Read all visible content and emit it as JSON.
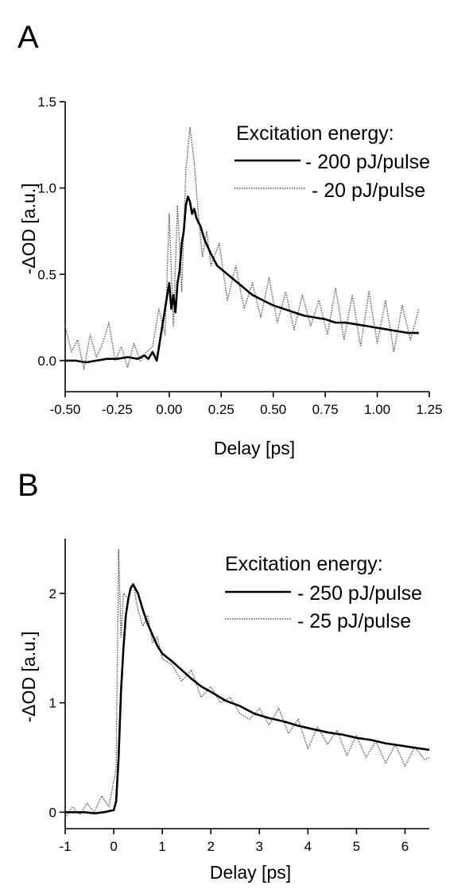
{
  "panels": [
    {
      "letter": "A"
    },
    {
      "letter": "B"
    }
  ],
  "chart_data": [
    {
      "type": "line",
      "title": "",
      "xlabel": "Delay [ps]",
      "ylabel": "-ΔOD [a.u.]",
      "xlim": [
        -0.5,
        1.25
      ],
      "ylim": [
        -0.18,
        1.5
      ],
      "xticks": [
        "-0.50",
        "-0.25",
        "0.00",
        "0.25",
        "0.50",
        "0.75",
        "1.00",
        "1.25"
      ],
      "xtick_values": [
        -0.5,
        -0.25,
        0.0,
        0.25,
        0.5,
        0.75,
        1.0,
        1.25
      ],
      "yticks": [
        "0.0",
        "0.5",
        "1.0",
        "1.5"
      ],
      "ytick_values": [
        0.0,
        0.5,
        1.0,
        1.5
      ],
      "grid": false,
      "legend_title": "Excitation energy:",
      "legend_position": "top-right",
      "series": [
        {
          "name": "- 200 pJ/pulse",
          "style": "solid",
          "color": "#000000",
          "x": [
            -0.5,
            -0.45,
            -0.4,
            -0.35,
            -0.3,
            -0.25,
            -0.2,
            -0.15,
            -0.12,
            -0.1,
            -0.08,
            -0.06,
            -0.04,
            -0.02,
            0.0,
            0.01,
            0.02,
            0.03,
            0.04,
            0.05,
            0.06,
            0.07,
            0.08,
            0.09,
            0.1,
            0.11,
            0.12,
            0.13,
            0.14,
            0.15,
            0.17,
            0.2,
            0.23,
            0.26,
            0.3,
            0.35,
            0.4,
            0.45,
            0.5,
            0.55,
            0.6,
            0.65,
            0.7,
            0.75,
            0.8,
            0.85,
            0.9,
            0.95,
            1.0,
            1.05,
            1.1,
            1.15,
            1.2
          ],
          "y": [
            0.0,
            0.0,
            -0.01,
            0.0,
            0.01,
            0.01,
            0.02,
            0.01,
            0.03,
            0.01,
            0.05,
            0.0,
            0.15,
            0.3,
            0.45,
            0.3,
            0.38,
            0.28,
            0.45,
            0.52,
            0.68,
            0.75,
            0.9,
            0.95,
            0.92,
            0.85,
            0.88,
            0.83,
            0.8,
            0.78,
            0.7,
            0.62,
            0.55,
            0.52,
            0.48,
            0.43,
            0.38,
            0.35,
            0.32,
            0.3,
            0.28,
            0.26,
            0.25,
            0.24,
            0.22,
            0.22,
            0.21,
            0.2,
            0.19,
            0.18,
            0.17,
            0.16,
            0.16
          ]
        },
        {
          "name": "- 20 pJ/pulse",
          "style": "dotted",
          "color": "#555555",
          "x": [
            -0.5,
            -0.47,
            -0.44,
            -0.41,
            -0.38,
            -0.35,
            -0.32,
            -0.29,
            -0.26,
            -0.23,
            -0.2,
            -0.17,
            -0.14,
            -0.11,
            -0.08,
            -0.05,
            -0.02,
            0.0,
            0.02,
            0.04,
            0.06,
            0.08,
            0.1,
            0.12,
            0.14,
            0.16,
            0.18,
            0.2,
            0.24,
            0.28,
            0.32,
            0.36,
            0.4,
            0.44,
            0.48,
            0.52,
            0.56,
            0.6,
            0.64,
            0.68,
            0.72,
            0.76,
            0.8,
            0.84,
            0.88,
            0.92,
            0.96,
            1.0,
            1.04,
            1.08,
            1.12,
            1.16,
            1.2
          ],
          "y": [
            0.2,
            0.05,
            0.12,
            -0.05,
            0.15,
            0.02,
            0.1,
            0.22,
            0.0,
            0.08,
            -0.04,
            0.1,
            0.0,
            0.05,
            0.08,
            0.3,
            0.15,
            0.85,
            0.2,
            0.9,
            0.4,
            1.1,
            1.35,
            1.15,
            0.85,
            0.6,
            0.75,
            0.55,
            0.68,
            0.35,
            0.55,
            0.3,
            0.45,
            0.25,
            0.48,
            0.22,
            0.4,
            0.18,
            0.38,
            0.2,
            0.35,
            0.15,
            0.42,
            0.12,
            0.38,
            0.08,
            0.4,
            0.1,
            0.35,
            0.05,
            0.32,
            0.12,
            0.3
          ]
        }
      ]
    },
    {
      "type": "line",
      "title": "",
      "xlabel": "Delay [ps]",
      "ylabel": "-ΔOD [a.u.]",
      "xlim": [
        -1,
        6.5
      ],
      "ylim": [
        -0.15,
        2.5
      ],
      "xticks": [
        "-1",
        "0",
        "1",
        "2",
        "3",
        "4",
        "5",
        "6"
      ],
      "xtick_values": [
        -1,
        0,
        1,
        2,
        3,
        4,
        5,
        6
      ],
      "yticks": [
        "0",
        "1",
        "2"
      ],
      "ytick_values": [
        0,
        1,
        2
      ],
      "grid": false,
      "legend_title": "Excitation energy:",
      "legend_position": "top-right",
      "series": [
        {
          "name": "- 250 pJ/pulse",
          "style": "solid",
          "color": "#000000",
          "x": [
            -1,
            -0.8,
            -0.6,
            -0.4,
            -0.2,
            0.0,
            0.05,
            0.1,
            0.15,
            0.2,
            0.25,
            0.3,
            0.35,
            0.4,
            0.5,
            0.6,
            0.7,
            0.8,
            0.9,
            1.0,
            1.2,
            1.4,
            1.6,
            1.8,
            2.0,
            2.3,
            2.6,
            2.9,
            3.2,
            3.5,
            3.8,
            4.1,
            4.4,
            4.7,
            5.0,
            5.3,
            5.6,
            5.9,
            6.2,
            6.5
          ],
          "y": [
            0.0,
            0.0,
            0.0,
            -0.01,
            0.0,
            0.02,
            0.1,
            0.5,
            1.1,
            1.5,
            1.8,
            1.95,
            2.05,
            2.08,
            2.0,
            1.85,
            1.72,
            1.62,
            1.52,
            1.45,
            1.38,
            1.3,
            1.22,
            1.15,
            1.1,
            1.02,
            0.97,
            0.9,
            0.86,
            0.83,
            0.79,
            0.76,
            0.73,
            0.71,
            0.68,
            0.66,
            0.63,
            0.61,
            0.59,
            0.57
          ]
        },
        {
          "name": "- 25 pJ/pulse",
          "style": "dotted",
          "color": "#555555",
          "x": [
            -1,
            -0.85,
            -0.7,
            -0.55,
            -0.4,
            -0.25,
            -0.1,
            0.05,
            0.1,
            0.15,
            0.2,
            0.3,
            0.4,
            0.5,
            0.6,
            0.7,
            0.8,
            0.9,
            1.0,
            1.2,
            1.4,
            1.6,
            1.8,
            2.0,
            2.2,
            2.4,
            2.6,
            2.8,
            3.0,
            3.2,
            3.4,
            3.6,
            3.8,
            4.0,
            4.2,
            4.4,
            4.6,
            4.8,
            5.0,
            5.2,
            5.4,
            5.6,
            5.8,
            6.0,
            6.2,
            6.4,
            6.5
          ],
          "y": [
            -0.05,
            0.05,
            -0.02,
            0.08,
            0.0,
            0.15,
            0.05,
            0.4,
            2.4,
            1.6,
            2.0,
            1.95,
            2.1,
            1.85,
            1.7,
            1.8,
            1.55,
            1.6,
            1.4,
            1.35,
            1.2,
            1.3,
            1.05,
            1.15,
            1.0,
            1.05,
            0.9,
            0.85,
            0.95,
            0.8,
            0.95,
            0.72,
            0.85,
            0.58,
            0.78,
            0.62,
            0.75,
            0.52,
            0.7,
            0.5,
            0.65,
            0.45,
            0.62,
            0.42,
            0.6,
            0.48,
            0.5
          ]
        }
      ]
    }
  ]
}
